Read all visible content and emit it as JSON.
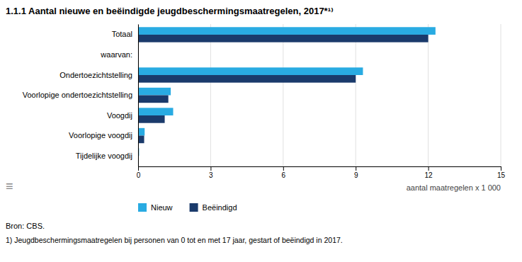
{
  "chart_data": {
    "type": "bar",
    "orientation": "horizontal",
    "title": "1.1.1  Aantal nieuwe en beëindigde jeugdbeschermingsmaatregelen, 2017*¹⁾",
    "categories": [
      "Totaal",
      "waarvan:",
      "Ondertoezichtstelling",
      "Voorlopige ondertoezichtstelling",
      "Voogdij",
      "Voorlopige voogdij",
      "Tijdelijke voogdij"
    ],
    "series": [
      {
        "name": "Nieuw",
        "color": "#29ABE2",
        "values": [
          12.3,
          null,
          9.3,
          1.35,
          1.45,
          0.27,
          0.04
        ]
      },
      {
        "name": "Beëindigd",
        "color": "#1A3A6B",
        "values": [
          12.0,
          null,
          9.0,
          1.25,
          1.1,
          0.25,
          0.0
        ]
      }
    ],
    "xlabel": "aantal maatregelen x 1 000",
    "xlim": [
      0,
      15
    ],
    "xticks": [
      0,
      3,
      6,
      9,
      12,
      15
    ],
    "grid": true,
    "legend": "bottom",
    "annotations": [
      "≡",
      "Bron: CBS.",
      "1)  Jeugdbeschermingsmaatregelen bij personen van 0 tot en met 17 jaar, gestart of beëindigd in 2017."
    ]
  }
}
